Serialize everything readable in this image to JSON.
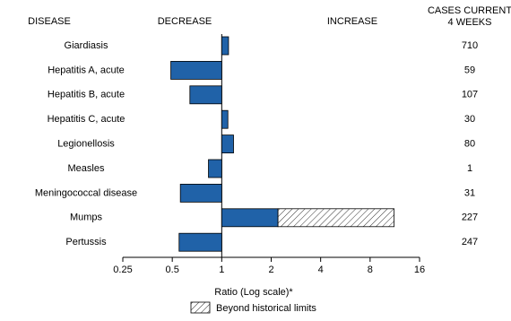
{
  "chart_data": {
    "type": "bar",
    "headers": {
      "disease": "DISEASE",
      "decrease": "DECREASE",
      "increase": "INCREASE",
      "cases": [
        "CASES CURRENT",
        "4 WEEKS"
      ]
    },
    "categories": [
      "Giardiasis",
      "Hepatitis A, acute",
      "Hepatitis B, acute",
      "Hepatitis C, acute",
      "Legionellosis",
      "Measles",
      "Meningococcal disease",
      "Mumps",
      "Pertussis"
    ],
    "values": [
      1.1,
      0.49,
      0.64,
      1.09,
      1.18,
      0.83,
      0.56,
      11.2,
      0.55
    ],
    "historical_limits": [
      null,
      null,
      null,
      null,
      null,
      null,
      null,
      2.2,
      null
    ],
    "cases": [
      710,
      59,
      107,
      30,
      80,
      1,
      31,
      227,
      247
    ],
    "color": "#2062a8",
    "log_scale": true,
    "xlim": [
      0.25,
      16
    ],
    "xticks": [
      0.25,
      0.5,
      1,
      2,
      4,
      8,
      16
    ],
    "xlabel": "Ratio (Log scale)*",
    "legend": "Beyond historical limits"
  }
}
